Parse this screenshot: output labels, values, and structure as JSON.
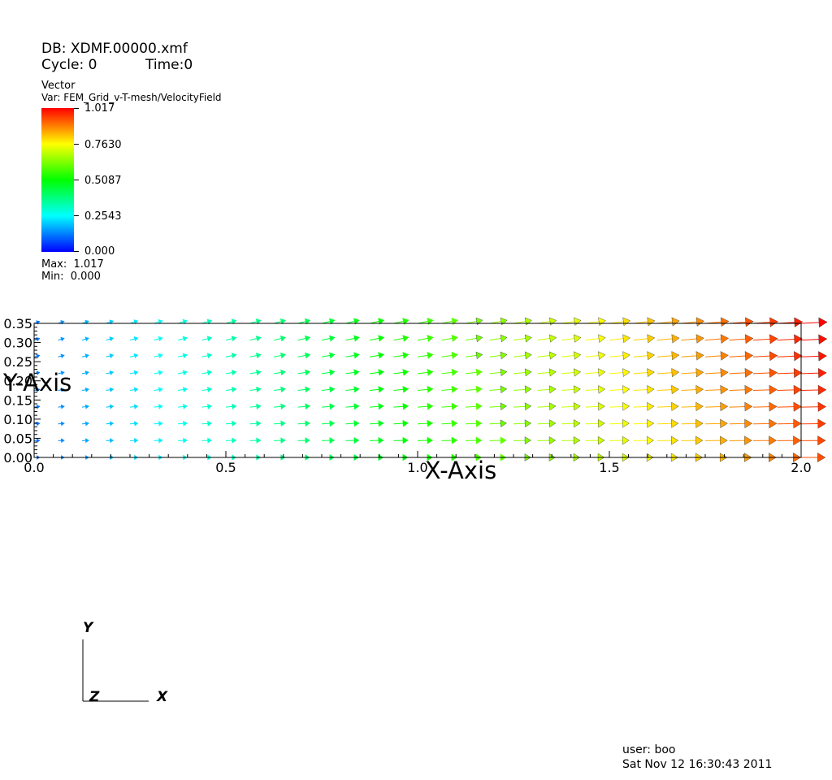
{
  "header": {
    "db": "DB: XDMF.00000.xmf",
    "cycle": "Cycle: 0",
    "time": "Time:0"
  },
  "legend": {
    "kind": "Vector",
    "var": "Var: FEM_Grid_v-T-mesh/VelocityField",
    "ticks": [
      "1.017",
      "0.7630",
      "0.5087",
      "0.2543",
      "0.000"
    ],
    "max": "Max:  1.017",
    "min": "Min:  0.000",
    "colors": [
      "#0000ff",
      "#00ffff",
      "#00ff00",
      "#ffff00",
      "#ff0000"
    ]
  },
  "triad": {
    "y": "Y",
    "z": "Z",
    "x": "X"
  },
  "footer": {
    "user": "user: boo",
    "date": "Sat Nov 12 16:30:43 2011"
  },
  "chart_data": {
    "type": "vector_field",
    "xlabel": "X-Axis",
    "ylabel": "Y-Axis",
    "xlim": [
      0,
      2.0
    ],
    "ylim": [
      0,
      0.35
    ],
    "xticks": [
      "0.0",
      "0.5",
      "1.0",
      "1.5",
      "2.0"
    ],
    "yticks": [
      "0.00",
      "0.05",
      "0.10",
      "0.15",
      "0.20",
      "0.25",
      "0.30",
      "0.35"
    ],
    "value_range": [
      0.0,
      1.017
    ],
    "grid": {
      "x_start": 0.0,
      "x_step": 0.0625,
      "x_count": 33,
      "y_start": 0.0,
      "y_step": 0.04375,
      "y_count": 9
    }
  }
}
